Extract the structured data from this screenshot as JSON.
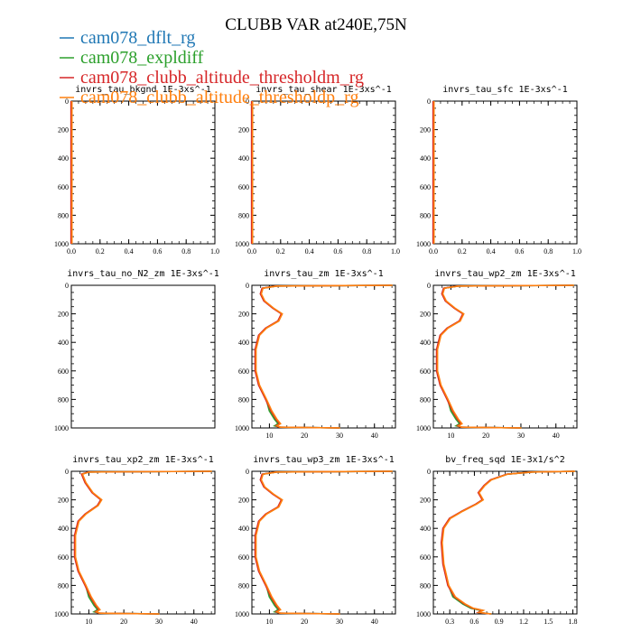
{
  "figure": {
    "title": "CLUBB VAR at240E,75N",
    "legend": [
      {
        "name": "cam078_dflt_rg",
        "color": "#1f77b4"
      },
      {
        "name": "cam078_expldiff",
        "color": "#2ca02c"
      },
      {
        "name": "cam078_clubb_altitude_thresholdm_rg",
        "color": "#d62728"
      },
      {
        "name": "cam078_clubb_altitude_thresholdp_rg",
        "color": "#ff7f0e"
      }
    ]
  },
  "chart_data": [
    {
      "type": "line",
      "title": "invrs_tau_bkgnd   1E-3xs^-1",
      "xlim": [
        0,
        1
      ],
      "ylim": [
        1000,
        0
      ],
      "xticks": [
        0.0,
        0.2,
        0.4,
        0.6,
        0.8,
        1.0
      ],
      "xtick_labels": [
        "0.0",
        "0.2",
        "0.4",
        "0.6",
        "0.8",
        "1.0"
      ],
      "yticks": [
        0,
        200,
        400,
        600,
        800,
        1000
      ],
      "x_profile": [
        0,
        0
      ],
      "y_profile": [
        0,
        1000
      ]
    },
    {
      "type": "line",
      "title": "invrs_tau_shear   1E-3xs^-1",
      "xlim": [
        0,
        1
      ],
      "ylim": [
        1000,
        0
      ],
      "xticks": [
        0.0,
        0.2,
        0.4,
        0.6,
        0.8,
        1.0
      ],
      "xtick_labels": [
        "0.0",
        "0.2",
        "0.4",
        "0.6",
        "0.8",
        "1.0"
      ],
      "yticks": [
        0,
        200,
        400,
        600,
        800,
        1000
      ],
      "x_profile": [
        0,
        0
      ],
      "y_profile": [
        0,
        1000
      ]
    },
    {
      "type": "line",
      "title": "invrs_tau_sfc   1E-3xs^-1",
      "xlim": [
        0,
        1
      ],
      "ylim": [
        1000,
        0
      ],
      "xticks": [
        0.0,
        0.2,
        0.4,
        0.6,
        0.8,
        1.0
      ],
      "xtick_labels": [
        "0.0",
        "0.2",
        "0.4",
        "0.6",
        "0.8",
        "1.0"
      ],
      "yticks": [
        0,
        200,
        400,
        600,
        800,
        1000
      ],
      "x_profile": [
        0,
        0
      ],
      "y_profile": [
        0,
        1000
      ]
    },
    {
      "type": "line",
      "title": "invrs_tau_no_N2_zm   1E-3xs^-1",
      "xlim": [
        0,
        1
      ],
      "ylim": [
        1000,
        0
      ],
      "xticks": [],
      "xtick_labels": [],
      "yticks": [
        0,
        200,
        400,
        600,
        800,
        1000
      ],
      "x_profile": [],
      "y_profile": []
    },
    {
      "type": "line",
      "title": "invrs_tau_zm   1E-3xs^-1",
      "xlim": [
        5,
        46
      ],
      "ylim": [
        1000,
        0
      ],
      "xticks": [
        10,
        20,
        30,
        40
      ],
      "xtick_labels": [
        "10",
        "20",
        "30",
        "40"
      ],
      "yticks": [
        0,
        200,
        400,
        600,
        800,
        1000
      ],
      "x_profile": [
        45,
        12,
        8,
        7.5,
        8.5,
        11,
        13.5,
        12.5,
        9,
        7,
        6,
        6,
        7,
        9,
        10.5,
        12,
        13,
        12,
        13,
        30
      ],
      "y_profile": [
        0,
        5,
        20,
        60,
        110,
        160,
        200,
        250,
        300,
        350,
        450,
        600,
        700,
        800,
        880,
        940,
        970,
        985,
        995,
        1000
      ]
    },
    {
      "type": "line",
      "title": "invrs_tau_wp2_zm   1E-3xs^-1",
      "xlim": [
        5,
        46
      ],
      "ylim": [
        1000,
        0
      ],
      "xticks": [
        10,
        20,
        30,
        40
      ],
      "xtick_labels": [
        "10",
        "20",
        "30",
        "40"
      ],
      "yticks": [
        0,
        200,
        400,
        600,
        800,
        1000
      ],
      "x_profile": [
        45,
        12,
        8,
        7.5,
        8.5,
        11,
        13.5,
        12.5,
        9,
        7,
        6,
        6,
        7,
        9,
        10.5,
        12,
        13,
        12,
        13,
        30
      ],
      "y_profile": [
        0,
        5,
        20,
        60,
        110,
        160,
        200,
        250,
        300,
        350,
        450,
        600,
        700,
        800,
        880,
        940,
        970,
        985,
        995,
        1000
      ]
    },
    {
      "type": "line",
      "title": "invrs_tau_xp2_zm   1E-3xs^-1",
      "xlim": [
        5,
        46
      ],
      "ylim": [
        1000,
        0
      ],
      "xticks": [
        10,
        20,
        30,
        40
      ],
      "xtick_labels": [
        "10",
        "20",
        "30",
        "40"
      ],
      "yticks": [
        0,
        200,
        400,
        600,
        800,
        1000
      ],
      "x_profile": [
        45,
        10,
        8,
        9,
        11,
        13.5,
        12.5,
        9,
        7,
        6,
        6,
        7,
        9,
        10.5,
        12,
        13,
        12,
        13,
        30
      ],
      "y_profile": [
        0,
        5,
        20,
        80,
        150,
        200,
        240,
        300,
        350,
        450,
        600,
        700,
        800,
        880,
        940,
        970,
        985,
        995,
        1000
      ]
    },
    {
      "type": "line",
      "title": "invrs_tau_wp3_zm   1E-3xs^-1",
      "xlim": [
        5,
        46
      ],
      "ylim": [
        1000,
        0
      ],
      "xticks": [
        10,
        20,
        30,
        40
      ],
      "xtick_labels": [
        "10",
        "20",
        "30",
        "40"
      ],
      "yticks": [
        0,
        200,
        400,
        600,
        800,
        1000
      ],
      "x_profile": [
        45,
        12,
        8,
        7.5,
        8.5,
        11,
        13.5,
        12.5,
        9,
        7,
        6,
        6,
        7,
        9,
        10.5,
        12,
        13,
        12,
        13,
        30
      ],
      "y_profile": [
        0,
        5,
        20,
        60,
        110,
        160,
        200,
        250,
        300,
        350,
        450,
        600,
        700,
        800,
        880,
        940,
        970,
        985,
        995,
        1000
      ]
    },
    {
      "type": "line",
      "title": "bv_freq_sqd   1E-3x1/s^2",
      "xlim": [
        0.1,
        1.85
      ],
      "ylim": [
        1000,
        0
      ],
      "xticks": [
        0.3,
        0.6,
        0.9,
        1.2,
        1.5,
        1.8
      ],
      "xtick_labels": [
        "0.3",
        "0.6",
        "0.9",
        "1.2",
        "1.5",
        "1.8"
      ],
      "yticks": [
        0,
        200,
        400,
        600,
        800,
        1000
      ],
      "x_profile": [
        1.82,
        1.3,
        1.0,
        0.8,
        0.72,
        0.65,
        0.7,
        0.62,
        0.45,
        0.3,
        0.22,
        0.2,
        0.22,
        0.28,
        0.36,
        0.48,
        0.58,
        0.7,
        0.65,
        0.8
      ],
      "y_profile": [
        0,
        5,
        20,
        60,
        100,
        150,
        200,
        230,
        280,
        330,
        400,
        500,
        650,
        800,
        880,
        930,
        960,
        975,
        990,
        1000
      ]
    }
  ]
}
